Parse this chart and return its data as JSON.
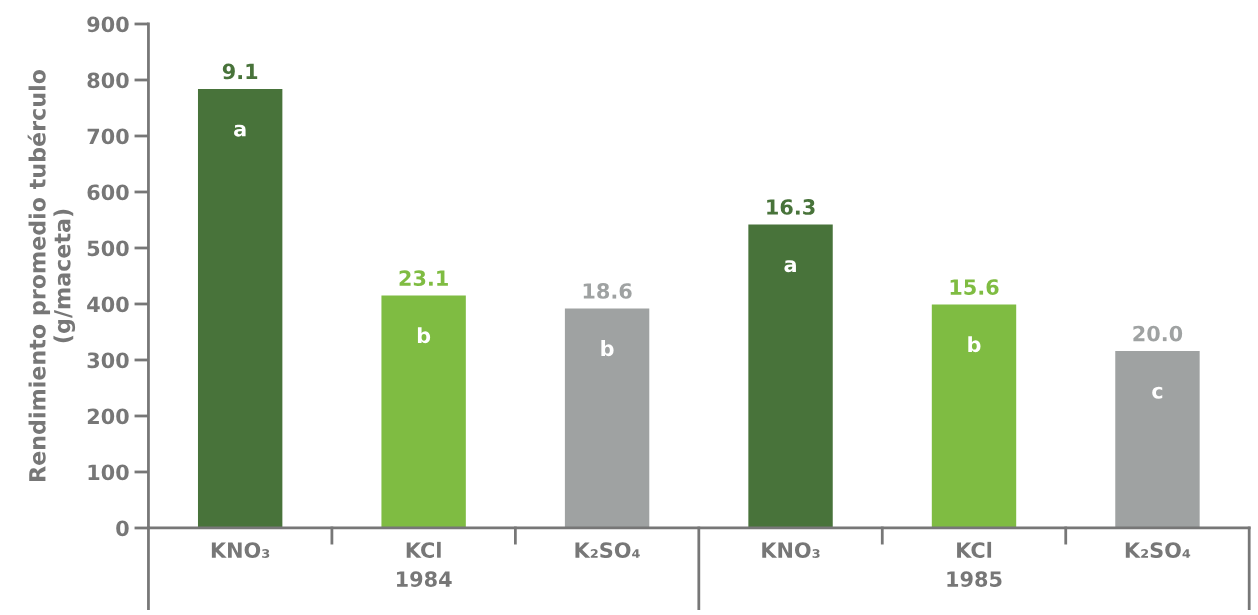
{
  "chart_data": {
    "type": "bar",
    "ylabel": "Rendimiento promedio tubérculo\n(g/maceta)",
    "categories": [
      "KNO₃",
      "KCl",
      "K₂SO₄",
      "KNO₃",
      "KCl",
      "K₂SO₄"
    ],
    "values": [
      784,
      415,
      392,
      542,
      399,
      316
    ],
    "colors": [
      "#48733a",
      "#7fbc42",
      "#9fa2a2",
      "#48733a",
      "#7fbc42",
      "#9fa2a2"
    ],
    "annotations": [
      "9.1",
      "23.1",
      "18.6",
      "16.3",
      "15.6",
      "20.0",
      "a",
      "b",
      "b",
      "a",
      "b",
      "c",
      "1984",
      "1985"
    ],
    "ylim": [
      0,
      900
    ],
    "yticks": [
      0,
      100,
      200,
      300,
      400,
      500,
      600,
      700,
      800,
      900
    ],
    "grid": false
  }
}
